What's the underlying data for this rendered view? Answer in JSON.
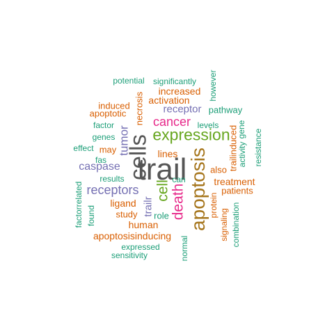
{
  "colors": {
    "teal": "#1b9e77",
    "orange": "#d95f02",
    "purple": "#7570b3",
    "magenta": "#e7298a",
    "green": "#66a61e",
    "gold": "#a6761d",
    "gray": "#555555"
  },
  "words": [
    {
      "text": "trail",
      "color": "gray"
    },
    {
      "text": "cells",
      "color": "gray"
    },
    {
      "text": "apoptosis",
      "color": "gold"
    },
    {
      "text": "expression",
      "color": "green"
    },
    {
      "text": "death",
      "color": "magenta"
    },
    {
      "text": "cell",
      "color": "green"
    },
    {
      "text": "cancer",
      "color": "magenta"
    },
    {
      "text": "receptors",
      "color": "purple"
    },
    {
      "text": "tumor",
      "color": "purple"
    },
    {
      "text": "caspase",
      "color": "purple"
    },
    {
      "text": "receptor",
      "color": "purple"
    },
    {
      "text": "activation",
      "color": "orange"
    },
    {
      "text": "increased",
      "color": "orange"
    },
    {
      "text": "treatment",
      "color": "orange"
    },
    {
      "text": "ligand",
      "color": "orange"
    },
    {
      "text": "human",
      "color": "orange"
    },
    {
      "text": "apoptosisinducing",
      "color": "orange"
    },
    {
      "text": "trailr",
      "color": "purple"
    },
    {
      "text": "pathway",
      "color": "teal"
    },
    {
      "text": "significantly",
      "color": "teal"
    },
    {
      "text": "potential",
      "color": "teal"
    },
    {
      "text": "necrosis",
      "color": "orange"
    },
    {
      "text": "however",
      "color": "teal"
    },
    {
      "text": "induced",
      "color": "orange"
    },
    {
      "text": "apoptotic",
      "color": "orange"
    },
    {
      "text": "factor",
      "color": "teal"
    },
    {
      "text": "levels",
      "color": "teal"
    },
    {
      "text": "genes",
      "color": "teal"
    },
    {
      "text": "effect",
      "color": "teal"
    },
    {
      "text": "may",
      "color": "orange"
    },
    {
      "text": "lines",
      "color": "orange"
    },
    {
      "text": "fas",
      "color": "teal"
    },
    {
      "text": "results",
      "color": "teal"
    },
    {
      "text": "can",
      "color": "teal"
    },
    {
      "text": "also",
      "color": "orange"
    },
    {
      "text": "patients",
      "color": "orange"
    },
    {
      "text": "study",
      "color": "orange"
    },
    {
      "text": "role",
      "color": "teal"
    },
    {
      "text": "found",
      "color": "teal"
    },
    {
      "text": "factorrelated",
      "color": "teal"
    },
    {
      "text": "expressed",
      "color": "teal"
    },
    {
      "text": "sensitivity",
      "color": "teal"
    },
    {
      "text": "normal",
      "color": "teal"
    },
    {
      "text": "protein",
      "color": "orange"
    },
    {
      "text": "signaling",
      "color": "orange"
    },
    {
      "text": "combination",
      "color": "teal"
    },
    {
      "text": "trailinduced",
      "color": "orange"
    },
    {
      "text": "activity",
      "color": "teal"
    },
    {
      "text": "gene",
      "color": "teal"
    },
    {
      "text": "resistance",
      "color": "teal"
    }
  ]
}
